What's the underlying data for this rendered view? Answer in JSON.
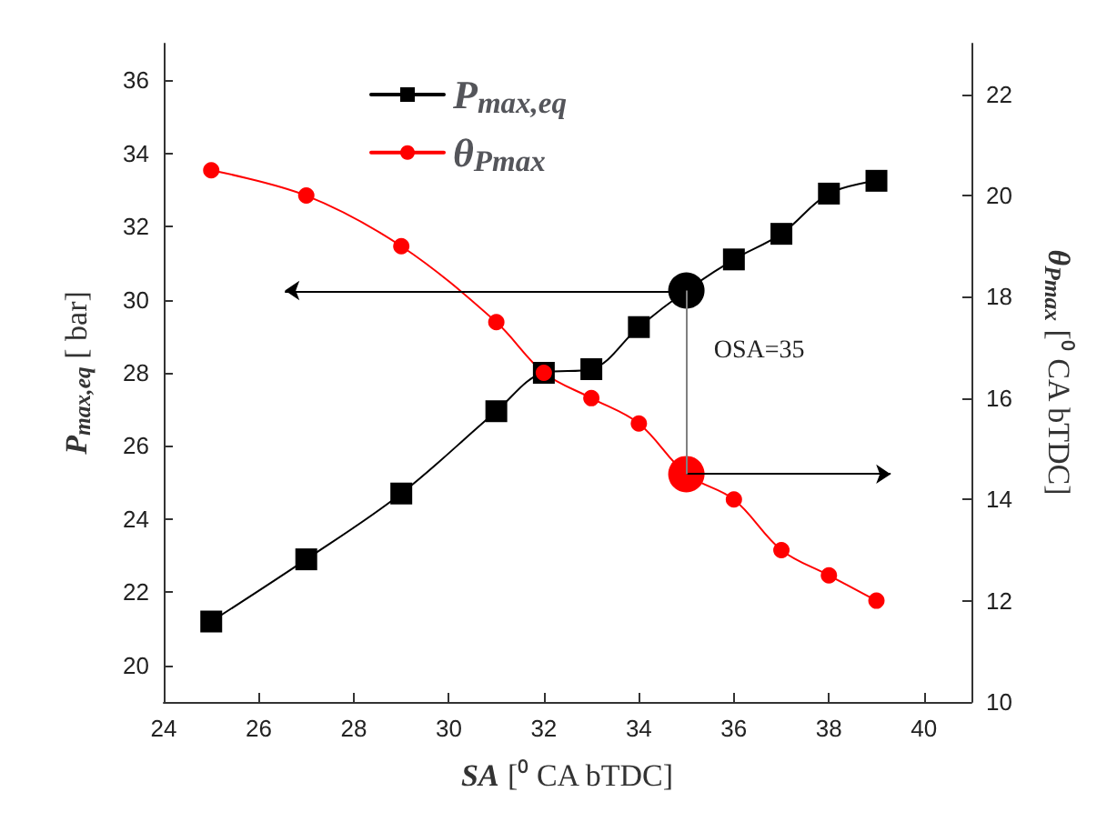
{
  "chart_data": {
    "type": "line",
    "x": [
      25,
      27,
      29,
      31,
      32,
      33,
      34,
      35,
      36,
      37,
      38,
      39
    ],
    "series": [
      {
        "name": "P$_{max,eq}$",
        "color": "#000000",
        "marker": "square",
        "values": [
          21.2,
          22.9,
          24.7,
          26.95,
          28.0,
          28.1,
          29.25,
          30.25,
          31.1,
          31.8,
          32.9,
          33.25
        ]
      },
      {
        "name": "θ$_{Pmax}$",
        "color": "#ff0000",
        "marker": "circle",
        "axis": "y2",
        "values": [
          20.5,
          20.0,
          19.0,
          17.5,
          16.5,
          16.0,
          15.5,
          14.5,
          14.0,
          13.0,
          12.5,
          12.0
        ]
      }
    ],
    "xlabel": "SA [⁰ CA bTDC]",
    "ylabel": "P$_{max,eq}$ [ bar]",
    "y2label": "θ$_{Pmax}$ [⁰ CA bTDC]",
    "xlim": [
      24,
      41
    ],
    "xticks": [
      24,
      26,
      28,
      30,
      32,
      34,
      36,
      38,
      40
    ],
    "ylim": [
      19,
      37
    ],
    "yticks": [
      20,
      22,
      24,
      26,
      28,
      30,
      32,
      34,
      36
    ],
    "y2lim": [
      10,
      23
    ],
    "y2ticks": [
      10,
      12,
      14,
      16,
      18,
      20,
      22
    ],
    "ref_lines": [
      {
        "axis": "x",
        "value": 35,
        "label": "OSA=35",
        "color": "#808080"
      }
    ],
    "legend": "top left",
    "grid": false,
    "line_style": "solid"
  }
}
